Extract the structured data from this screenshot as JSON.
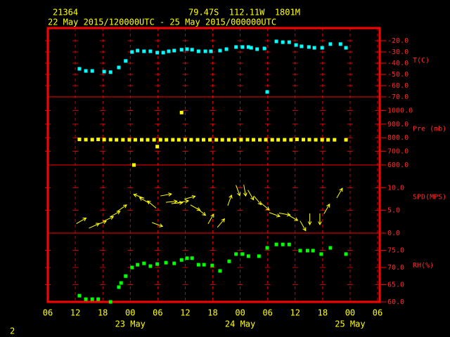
{
  "header": {
    "station": "21364",
    "location": "79.47S  112.11W  1801M",
    "period": "22 May 2015/120000UTC - 25 May 2015/000000UTC",
    "page": "2"
  },
  "x_axis": {
    "xlim": [
      6,
      78
    ],
    "xticks": [
      {
        "value": 6,
        "label": "06"
      },
      {
        "value": 12,
        "label": "12"
      },
      {
        "value": 18,
        "label": "18"
      },
      {
        "value": 24,
        "label": "00"
      },
      {
        "value": 30,
        "label": "06"
      },
      {
        "value": 36,
        "label": "12"
      },
      {
        "value": 42,
        "label": "18"
      },
      {
        "value": 48,
        "label": "00"
      },
      {
        "value": 54,
        "label": "06"
      },
      {
        "value": 60,
        "label": "12"
      },
      {
        "value": 66,
        "label": "18"
      },
      {
        "value": 72,
        "label": "00"
      },
      {
        "value": 78,
        "label": "06"
      }
    ],
    "date_ticks": [
      {
        "value": 24,
        "label": "23 May"
      },
      {
        "value": 48,
        "label": "24 May"
      },
      {
        "value": 72,
        "label": "25 May"
      }
    ]
  },
  "chart_data": [
    {
      "type": "scatter",
      "y_label": "T(C)",
      "color": "#00ffff",
      "ylim": [
        -70,
        -8.75
      ],
      "yticks": [
        {
          "value": -20,
          "label": "-20.0"
        },
        {
          "value": -30,
          "label": "-30.0"
        },
        {
          "value": -40,
          "label": "-40.0"
        },
        {
          "value": -50,
          "label": "-50.0"
        },
        {
          "value": -60,
          "label": "-60.0"
        },
        {
          "value": -70,
          "label": "-70.0"
        }
      ],
      "x": [
        12.9,
        14.3,
        15.7,
        18.3,
        19.7,
        21.5,
        23.0,
        24.4,
        25.6,
        27.0,
        28.4,
        29.9,
        31.2,
        32.4,
        33.6,
        35.2,
        36.4,
        37.5,
        38.9,
        40.4,
        41.6,
        43.6,
        45.0,
        47.1,
        48.5,
        49.8,
        50.4,
        51.7,
        53.3,
        53.9,
        55.9,
        57.3,
        58.7,
        60.2,
        61.4,
        63.0,
        64.2,
        65.9,
        67.7,
        69.9,
        71.1
      ],
      "values": [
        -45,
        -46.9,
        -46.9,
        -47.5,
        -48,
        -43.8,
        -38,
        -30,
        -28.8,
        -29.4,
        -29.4,
        -30.6,
        -30.6,
        -29.4,
        -28.8,
        -28,
        -27.5,
        -28,
        -29.4,
        -29.4,
        -29.4,
        -28.8,
        -27.5,
        -25.6,
        -25.6,
        -25.6,
        -26.3,
        -27.5,
        -26.9,
        -65.6,
        -20.6,
        -21.3,
        -21.3,
        -23.8,
        -25,
        -25.6,
        -26.3,
        -26.3,
        -23,
        -23,
        -26.3
      ]
    },
    {
      "type": "scatter",
      "y_label": "Pre (mb)",
      "color": "#ffff00",
      "ylim": [
        600,
        1100
      ],
      "yticks": [
        {
          "value": 1000,
          "label": "1000.0"
        },
        {
          "value": 900,
          "label": "900.0"
        },
        {
          "value": 800,
          "label": "800.0"
        },
        {
          "value": 700,
          "label": "700.0"
        },
        {
          "value": 600,
          "label": "600.0"
        }
      ],
      "x": [
        12.9,
        14.3,
        15.7,
        17.0,
        18.3,
        19.7,
        21.0,
        22.4,
        23.8,
        25.1,
        26.5,
        27.8,
        29.2,
        30.6,
        31.9,
        33.3,
        34.6,
        36.0,
        37.3,
        38.7,
        40.0,
        41.4,
        42.8,
        44.1,
        45.5,
        46.8,
        48.2,
        49.6,
        50.9,
        52.3,
        53.6,
        55.0,
        56.3,
        57.7,
        59.1,
        60.4,
        61.8,
        63.1,
        64.5,
        65.9,
        67.2,
        68.6,
        71.1,
        35.2,
        29.9,
        24.8
      ],
      "values": [
        788,
        786,
        786,
        788,
        786,
        786,
        785,
        785,
        785,
        785,
        785,
        785,
        785,
        785,
        785,
        785,
        785,
        785,
        785,
        785,
        785,
        785,
        785,
        785,
        785,
        785,
        785,
        786,
        785,
        785,
        785,
        785,
        785,
        785,
        785,
        788,
        786,
        786,
        785,
        785,
        785,
        785,
        785,
        985,
        735,
        600
      ]
    },
    {
      "type": "wind",
      "y_label": "SPD(MPS)",
      "color": "#ffff00",
      "ylim": [
        0,
        15
      ],
      "yticks": [
        {
          "value": 10,
          "label": "10.0"
        },
        {
          "value": 5,
          "label": "5.0"
        },
        {
          "value": 0,
          "label": "0.0"
        }
      ],
      "x": [
        13.3,
        16.1,
        17.6,
        19.2,
        20.7,
        22.2,
        25.9,
        27.1,
        28.7,
        29.9,
        31.8,
        33.0,
        34.2,
        35.5,
        37.0,
        38.2,
        39.5,
        41.6,
        43.8,
        45.7,
        47.5,
        49.0,
        50.3,
        51.8,
        53.4,
        55.5,
        57.7,
        59.5,
        61.7,
        63.2,
        65.4,
        66.9,
        69.7
      ],
      "values": [
        2.7,
        1.6,
        2.2,
        3.1,
        4.2,
        5.5,
        8.1,
        7.2,
        6.3,
        1.9,
        8.4,
        6.9,
        6.6,
        6.9,
        7.8,
        5.6,
        4.7,
        3.1,
        2.2,
        7.2,
        9.4,
        9.4,
        8.4,
        7.2,
        5.9,
        4.1,
        4.2,
        3.4,
        1.6,
        3.1,
        3.1,
        5.3,
        8.8
      ],
      "directions": [
        30,
        25,
        20,
        25,
        30,
        35,
        160,
        150,
        140,
        -20,
        10,
        5,
        5,
        10,
        15,
        -30,
        -40,
        60,
        50,
        70,
        -70,
        -80,
        -60,
        -50,
        -40,
        -20,
        -10,
        -30,
        -60,
        -90,
        -90,
        60,
        60
      ]
    },
    {
      "type": "scatter",
      "y_label": "RH(%)",
      "color": "#00ff00",
      "ylim": [
        60,
        80
      ],
      "yticks": [
        {
          "value": 75,
          "label": "75.0"
        },
        {
          "value": 70,
          "label": "70.0"
        },
        {
          "value": 65,
          "label": "65.0"
        },
        {
          "value": 60,
          "label": "60.0"
        }
      ],
      "x": [
        12.9,
        14.3,
        15.7,
        17.0,
        19.7,
        21.5,
        22.0,
        23.0,
        24.4,
        25.6,
        27.0,
        28.4,
        29.9,
        31.8,
        33.6,
        35.2,
        36.4,
        37.5,
        38.9,
        40.1,
        41.9,
        43.6,
        45.6,
        47.1,
        48.5,
        49.8,
        52.1,
        53.9,
        55.9,
        57.3,
        58.7,
        61.1,
        62.7,
        63.9,
        65.7,
        67.7,
        71.1
      ],
      "values": [
        61.8,
        60.8,
        60.8,
        60.8,
        60,
        64.3,
        65.5,
        67.5,
        70,
        70.8,
        71.2,
        70.4,
        71,
        71.4,
        71.2,
        72.2,
        72.7,
        72.7,
        70.8,
        70.8,
        70.6,
        69,
        71.8,
        73.9,
        73.9,
        73.3,
        73.3,
        75.7,
        76.7,
        76.7,
        76.7,
        74.9,
        74.9,
        74.9,
        73.9,
        75.7,
        73.9
      ]
    }
  ]
}
